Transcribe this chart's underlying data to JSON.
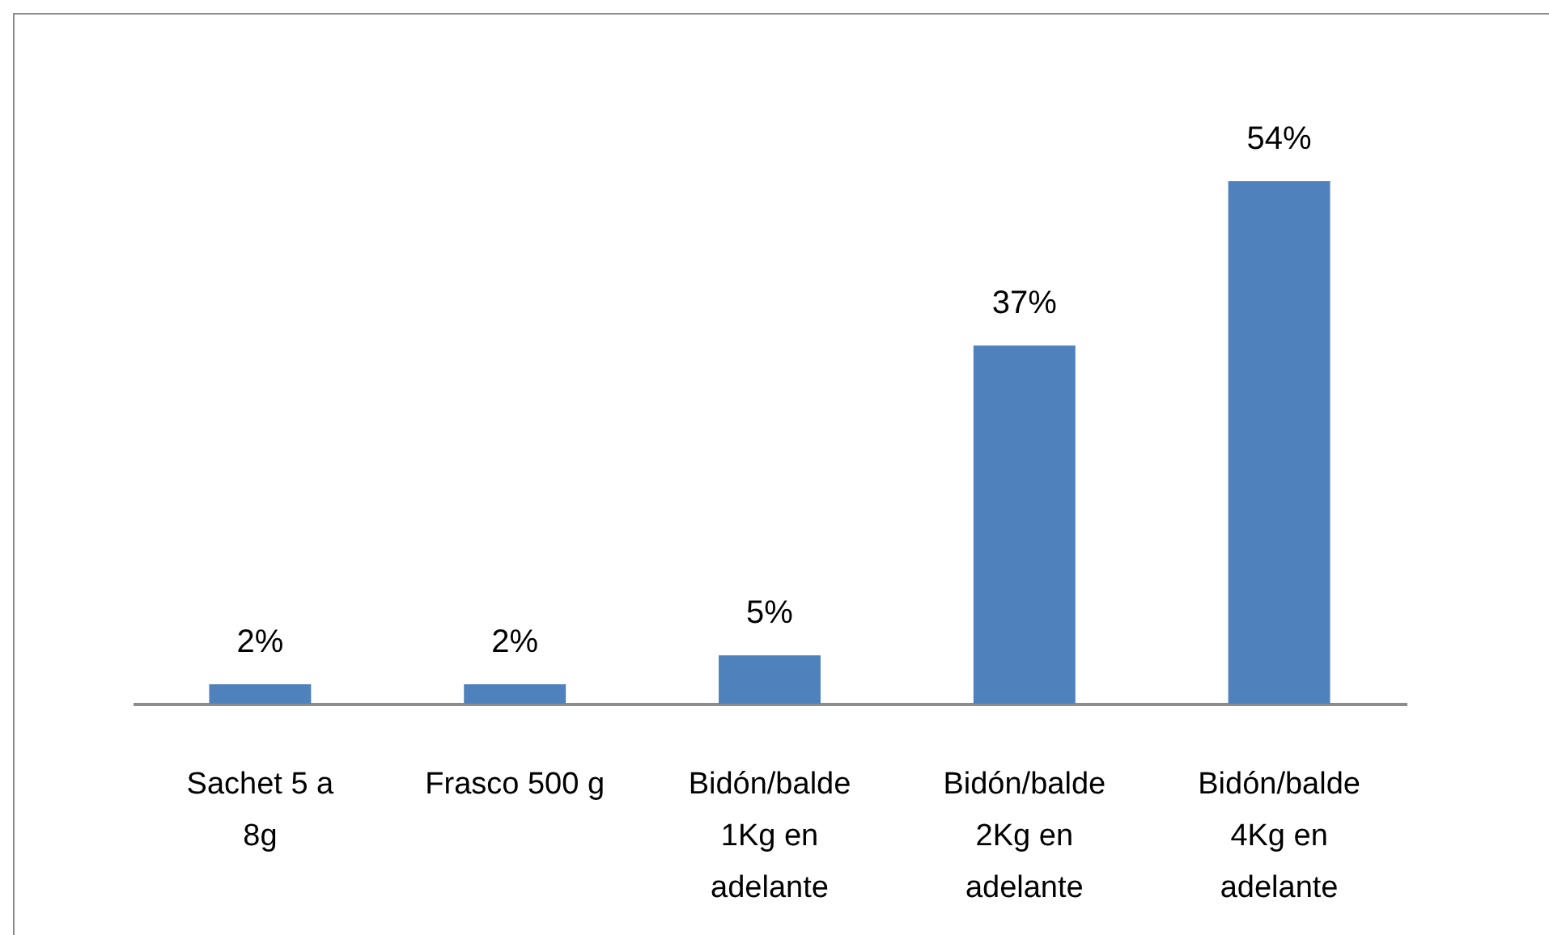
{
  "chart_data": {
    "type": "bar",
    "categories": [
      "Sachet 5 a 8g",
      "Frasco 500 g",
      "Bidón/balde 1Kg en adelante",
      "Bidón/balde 2Kg en adelante",
      "Bidón/balde 4Kg en adelante"
    ],
    "values": [
      2,
      2,
      5,
      37,
      54
    ],
    "value_labels": [
      "2%",
      "2%",
      "5%",
      "37%",
      "54%"
    ],
    "color": "#4f81bd",
    "tick_labels": "x"
  }
}
